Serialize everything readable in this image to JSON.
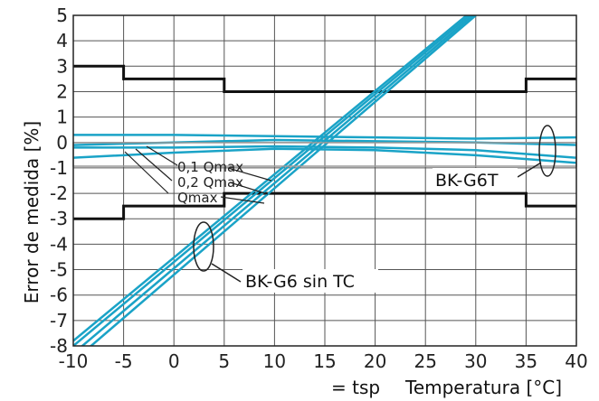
{
  "chart_data": {
    "type": "line",
    "ylabel": "Error de medida [%]",
    "xlabel": "Temperatura [°C]",
    "xlabel_prefix": "= tsp",
    "xlim": [
      -10,
      40
    ],
    "ylim": [
      -8,
      5
    ],
    "x_ticks": [
      -10,
      -5,
      0,
      5,
      10,
      15,
      20,
      25,
      30,
      35,
      40
    ],
    "y_ticks": [
      5,
      4,
      3,
      2,
      1,
      0,
      -1,
      -2,
      -3,
      -4,
      -5,
      -6,
      -7,
      -8
    ],
    "grid": true,
    "colors": {
      "series": "#1aa3c7",
      "limits": "#111111",
      "grid": "#555555",
      "box": "#999999"
    },
    "annotations": {
      "qmax_01": "0,1 Qmax",
      "qmax_02": "0,2 Qmax",
      "qmax": "Qmax",
      "bk_g6t": "BK-G6T",
      "bk_g6": "BK-G6 sin TC"
    },
    "series": [
      {
        "name": "BK-G6 sin TC",
        "x": [
          -10,
          30
        ],
        "y": [
          -8.6,
          5.0
        ]
      },
      {
        "name": "BK-G6 sin TC",
        "x": [
          -10,
          30
        ],
        "y": [
          -8.3,
          5.1
        ]
      },
      {
        "name": "BK-G6 sin TC",
        "x": [
          -10,
          30
        ],
        "y": [
          -8.0,
          5.2
        ]
      },
      {
        "name": "BK-G6 sin TC",
        "x": [
          -10,
          30
        ],
        "y": [
          -7.8,
          5.3
        ]
      },
      {
        "name": "BK-G6T",
        "x": [
          -10,
          0,
          10,
          20,
          30,
          40
        ],
        "y": [
          0.3,
          0.3,
          0.25,
          0.2,
          0.15,
          0.2
        ]
      },
      {
        "name": "BK-G6T",
        "x": [
          -10,
          0,
          10,
          20,
          30,
          40
        ],
        "y": [
          -0.1,
          0.0,
          0.1,
          0.05,
          0.0,
          -0.1
        ]
      },
      {
        "name": "BK-G6T",
        "x": [
          -10,
          0,
          10,
          20,
          30,
          40
        ],
        "y": [
          -0.2,
          -0.2,
          -0.15,
          -0.2,
          -0.3,
          -0.6
        ]
      },
      {
        "name": "BK-G6T",
        "x": [
          -10,
          0,
          10,
          20,
          30,
          40
        ],
        "y": [
          -0.6,
          -0.4,
          -0.25,
          -0.3,
          -0.5,
          -0.8
        ]
      }
    ],
    "limit_lines": [
      {
        "x": [
          -10,
          -5,
          -5,
          5,
          5,
          35,
          35,
          40
        ],
        "y": [
          3,
          3,
          2.5,
          2.5,
          2,
          2,
          2.5,
          2.5
        ]
      },
      {
        "x": [
          -10,
          -5,
          -5,
          5,
          5,
          35,
          35,
          40
        ],
        "y": [
          -3,
          -3,
          -2.5,
          -2.5,
          -2,
          -2,
          -2.5,
          -2.5
        ]
      }
    ]
  }
}
